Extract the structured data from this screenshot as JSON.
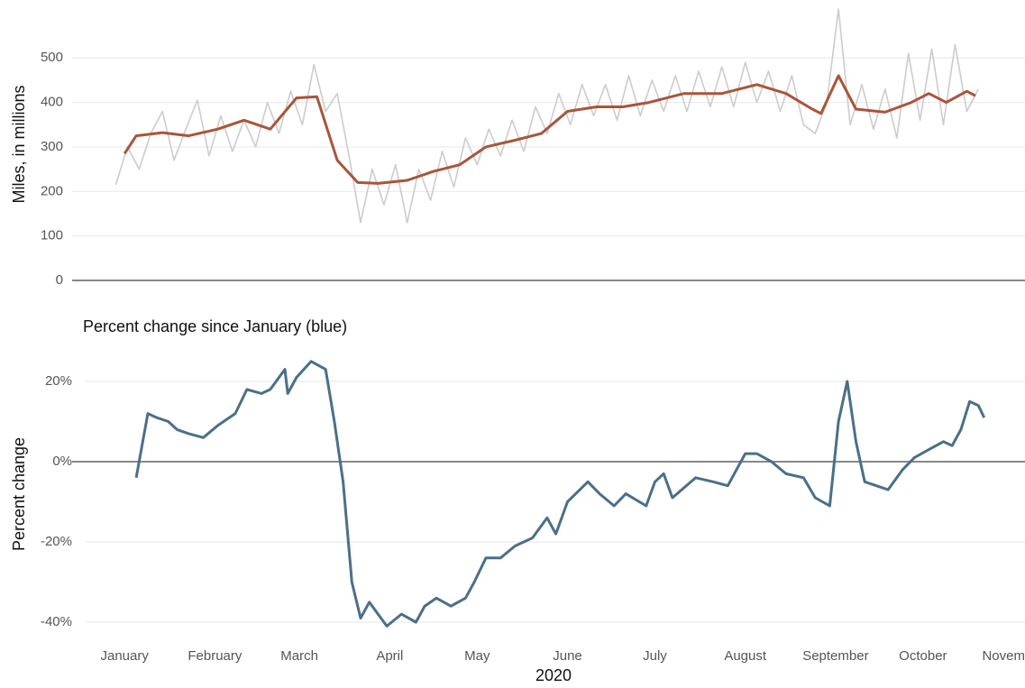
{
  "chart_data": [
    {
      "type": "line",
      "ylabel": "Miles, in millions",
      "xlim": [
        -17,
        310
      ],
      "ylim": [
        0,
        620
      ],
      "yticks": [
        0,
        100,
        200,
        300,
        400,
        500
      ],
      "grid": true,
      "series": [
        {
          "color": "#cccccc",
          "x": [
            -2,
            2,
            6,
            10,
            14,
            18,
            22,
            26,
            30,
            34,
            38,
            42,
            46,
            50,
            54,
            58,
            62,
            66,
            70,
            74,
            78,
            82,
            86,
            90,
            94,
            98,
            102,
            106,
            110,
            114,
            118,
            122,
            126,
            130,
            134,
            138,
            142,
            146,
            150,
            154,
            158,
            162,
            166,
            170,
            174,
            178,
            182,
            186,
            190,
            194,
            198,
            202,
            206,
            210,
            214,
            218,
            222,
            226,
            230,
            234,
            238,
            242,
            246,
            250,
            254,
            258,
            262,
            266,
            270,
            274,
            278,
            282,
            286,
            290,
            294
          ],
          "values": [
            215,
            300,
            250,
            330,
            380,
            270,
            340,
            405,
            280,
            370,
            290,
            360,
            300,
            400,
            330,
            425,
            350,
            485,
            380,
            420,
            280,
            130,
            250,
            170,
            260,
            130,
            250,
            180,
            290,
            210,
            320,
            260,
            340,
            280,
            360,
            290,
            390,
            330,
            420,
            350,
            440,
            370,
            440,
            360,
            460,
            370,
            450,
            380,
            460,
            380,
            470,
            390,
            480,
            390,
            490,
            400,
            470,
            380,
            460,
            350,
            330,
            400,
            610,
            350,
            440,
            340,
            430,
            320,
            510,
            360,
            520,
            350,
            530,
            380,
            430
          ]
        },
        {
          "color": "#a9553a",
          "x": [
            1,
            5,
            14,
            23,
            33,
            42,
            51,
            60,
            67,
            74,
            81,
            88,
            98,
            107,
            116,
            125,
            135,
            144,
            153,
            163,
            172,
            181,
            193,
            206,
            218,
            228,
            237,
            240,
            246,
            252,
            262,
            271,
            277,
            283,
            290,
            293
          ],
          "values": [
            285,
            325,
            332,
            325,
            340,
            360,
            340,
            410,
            413,
            270,
            220,
            218,
            225,
            245,
            260,
            300,
            315,
            330,
            380,
            390,
            390,
            400,
            420,
            420,
            440,
            420,
            385,
            375,
            460,
            385,
            378,
            400,
            420,
            400,
            425,
            415
          ]
        }
      ]
    },
    {
      "type": "line",
      "title": "Percent change since January (blue)",
      "ylabel": "Percent change",
      "xlabel": "2020",
      "xlim": [
        -17,
        310
      ],
      "ylim": [
        -42,
        26
      ],
      "yticks": [
        {
          "value": -40,
          "label": "-40%"
        },
        {
          "value": -20,
          "label": "-20%"
        },
        {
          "value": 0,
          "label": "0%"
        },
        {
          "value": 20,
          "label": "20%"
        }
      ],
      "xticks": [
        {
          "value": 1,
          "label": "January"
        },
        {
          "value": 32,
          "label": "February"
        },
        {
          "value": 61,
          "label": "March"
        },
        {
          "value": 92,
          "label": "April"
        },
        {
          "value": 122,
          "label": "May"
        },
        {
          "value": 153,
          "label": "June"
        },
        {
          "value": 183,
          "label": "July"
        },
        {
          "value": 214,
          "label": "August"
        },
        {
          "value": 245,
          "label": "September"
        },
        {
          "value": 275,
          "label": "October"
        },
        {
          "value": 306,
          "label": "November"
        }
      ],
      "grid": true,
      "series": [
        {
          "color": "#4a6f8a",
          "x": [
            5,
            6,
            9,
            12,
            16,
            19,
            23,
            28,
            33,
            39,
            43,
            48,
            51,
            56,
            57,
            60,
            65,
            70,
            73,
            76,
            79,
            82,
            85,
            88,
            91,
            96,
            101,
            104,
            108,
            113,
            118,
            121,
            125,
            130,
            135,
            141,
            146,
            149,
            153,
            160,
            164,
            169,
            173,
            180,
            183,
            186,
            189,
            197,
            203,
            208,
            214,
            218,
            223,
            228,
            234,
            238,
            243,
            246,
            249,
            252,
            255,
            263,
            268,
            272,
            277,
            282,
            285,
            288,
            291,
            294,
            296
          ],
          "values": [
            -4,
            0,
            12,
            11,
            10,
            8,
            7,
            6,
            9,
            12,
            18,
            17,
            18,
            23,
            17,
            21,
            25,
            23,
            10,
            -5,
            -30,
            -39,
            -35,
            -38,
            -41,
            -38,
            -40,
            -36,
            -34,
            -36,
            -34,
            -30,
            -24,
            -24,
            -21,
            -19,
            -14,
            -18,
            -10,
            -5,
            -8,
            -11,
            -8,
            -11,
            -5,
            -3,
            -9,
            -4,
            -5,
            -6,
            2,
            2,
            0,
            -3,
            -4,
            -9,
            -11,
            10,
            20,
            5,
            -5,
            -7,
            -2,
            1,
            3,
            5,
            4,
            8,
            15,
            14,
            11
          ]
        }
      ]
    }
  ]
}
